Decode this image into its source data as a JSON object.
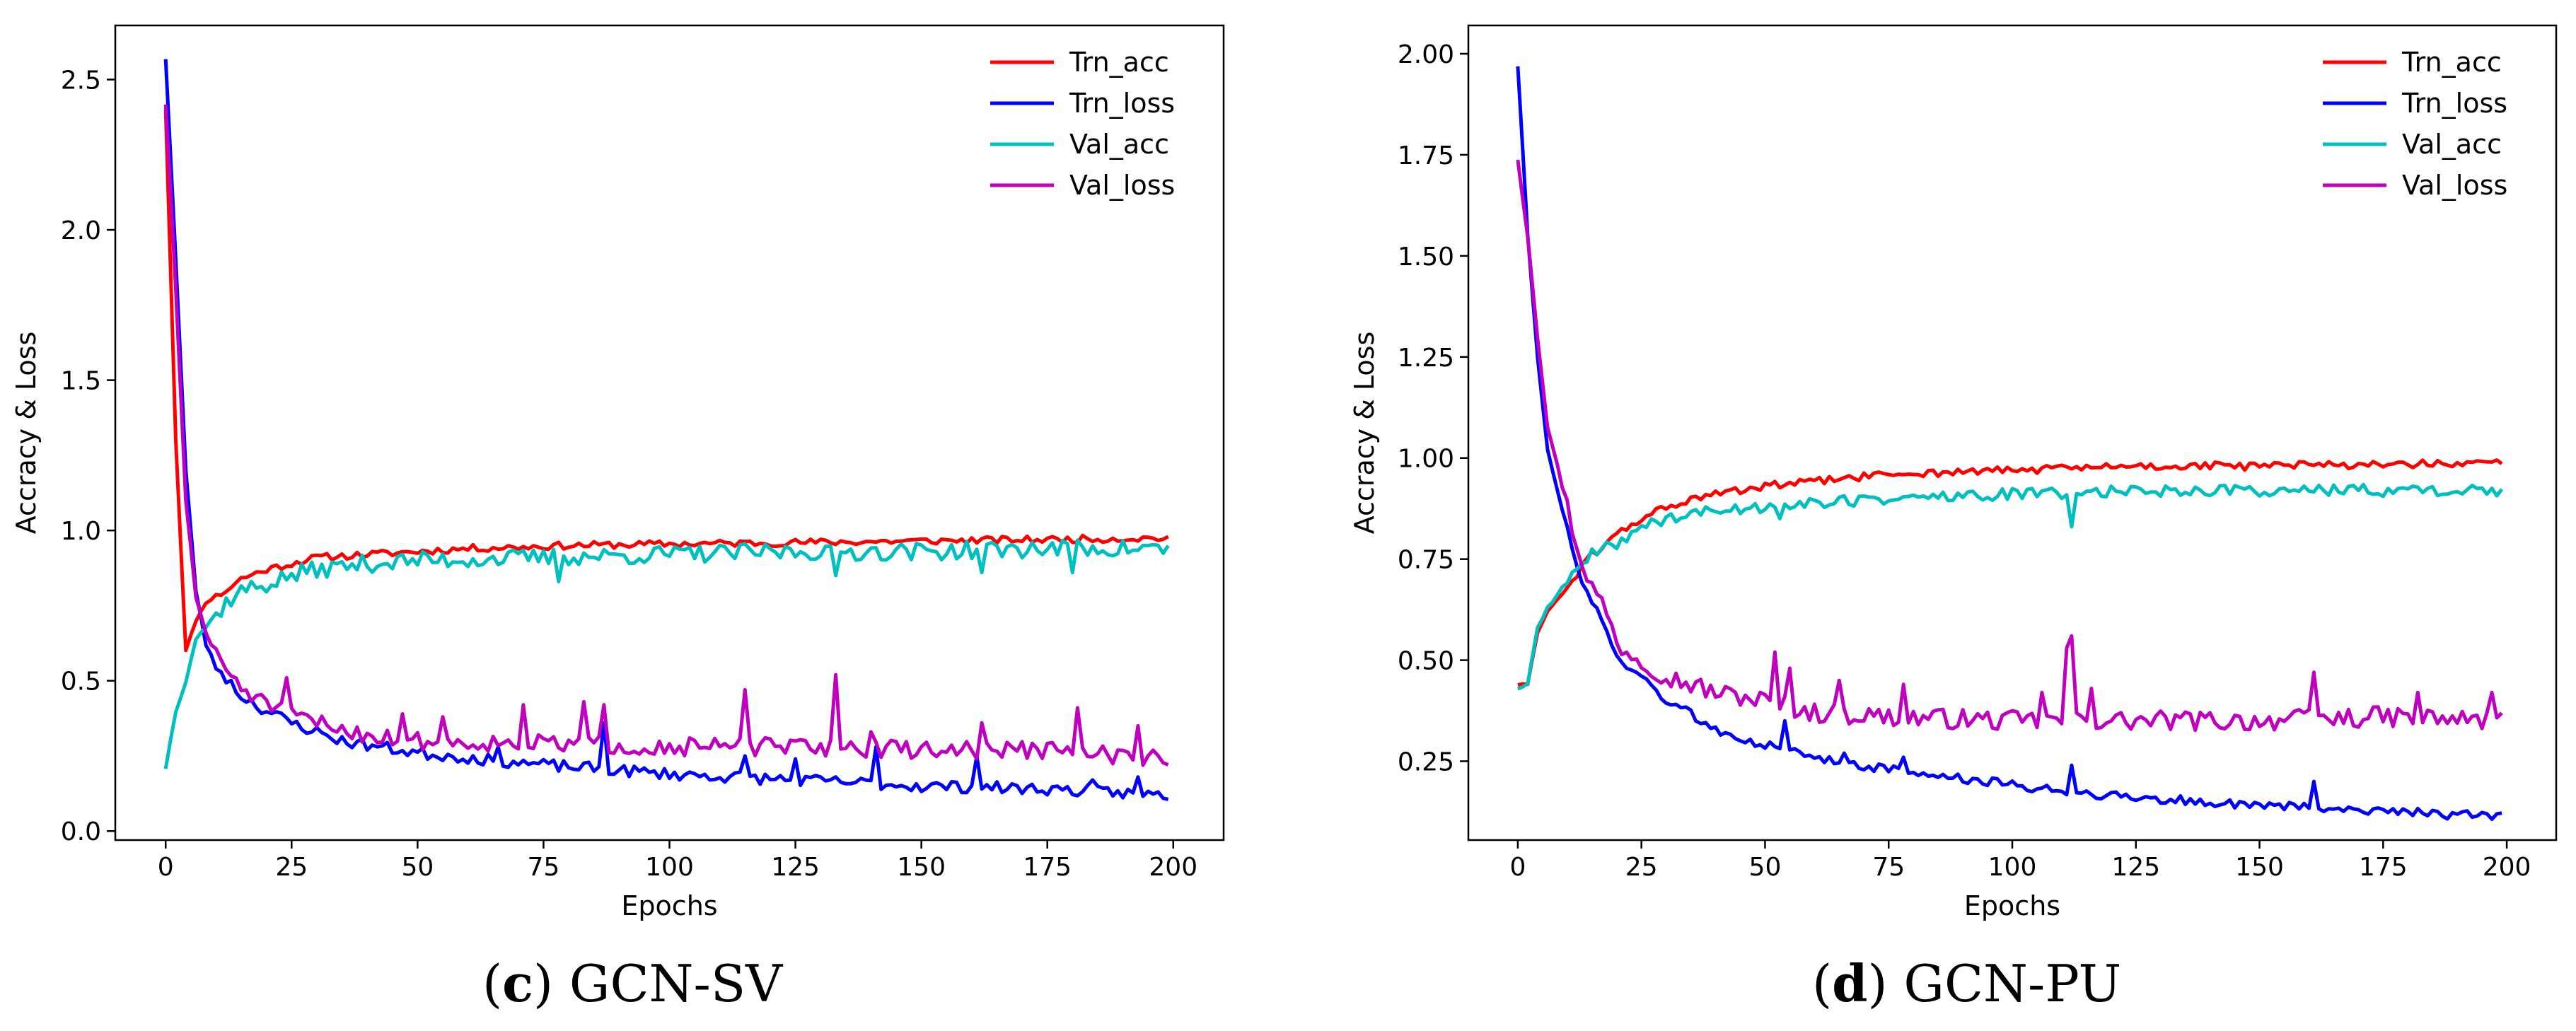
{
  "chart_data": [
    {
      "type": "line",
      "id": "c",
      "caption_letter": "c",
      "caption_text": "GCN-SV",
      "xlabel": "Epochs",
      "ylabel": "Accracy & Loss",
      "xlim": [
        -10,
        210
      ],
      "ylim": [
        -0.03,
        2.68
      ],
      "xticks": [
        0,
        25,
        50,
        75,
        100,
        125,
        150,
        175,
        200
      ],
      "yticks": [
        0.0,
        0.5,
        1.0,
        1.5,
        2.0,
        2.5
      ],
      "ytick_decimals": 1,
      "legend_position": "top-right",
      "series": [
        {
          "name": "Trn_acc",
          "color": "#ff0000",
          "anchors": [
            [
              0,
              2.4
            ],
            [
              2,
              1.3
            ],
            [
              4,
              0.6
            ],
            [
              6,
              0.7
            ],
            [
              8,
              0.76
            ],
            [
              12,
              0.8
            ],
            [
              15,
              0.84
            ],
            [
              20,
              0.87
            ],
            [
              25,
              0.89
            ],
            [
              30,
              0.91
            ],
            [
              40,
              0.92
            ],
            [
              50,
              0.93
            ],
            [
              60,
              0.94
            ],
            [
              80,
              0.95
            ],
            [
              100,
              0.955
            ],
            [
              125,
              0.96
            ],
            [
              150,
              0.965
            ],
            [
              175,
              0.97
            ],
            [
              199,
              0.975
            ]
          ],
          "noise": 0.012,
          "seed": 11
        },
        {
          "name": "Trn_loss",
          "color": "#0000ff",
          "anchors": [
            [
              0,
              2.57
            ],
            [
              2,
              1.9
            ],
            [
              4,
              1.2
            ],
            [
              6,
              0.8
            ],
            [
              8,
              0.62
            ],
            [
              10,
              0.55
            ],
            [
              15,
              0.45
            ],
            [
              20,
              0.4
            ],
            [
              25,
              0.36
            ],
            [
              35,
              0.3
            ],
            [
              50,
              0.26
            ],
            [
              75,
              0.22
            ],
            [
              100,
              0.19
            ],
            [
              125,
              0.17
            ],
            [
              150,
              0.15
            ],
            [
              175,
              0.14
            ],
            [
              199,
              0.12
            ]
          ],
          "noise": 0.02,
          "seed": 23,
          "spikes": [
            [
              66,
              0.28
            ],
            [
              87,
              0.36
            ],
            [
              115,
              0.25
            ],
            [
              125,
              0.24
            ],
            [
              141,
              0.28
            ],
            [
              161,
              0.25
            ],
            [
              184,
              0.17
            ],
            [
              193,
              0.18
            ]
          ]
        },
        {
          "name": "Val_acc",
          "color": "#00bfbf",
          "anchors": [
            [
              0,
              0.21
            ],
            [
              2,
              0.4
            ],
            [
              4,
              0.5
            ],
            [
              6,
              0.64
            ],
            [
              8,
              0.68
            ],
            [
              12,
              0.76
            ],
            [
              15,
              0.8
            ],
            [
              20,
              0.82
            ],
            [
              25,
              0.85
            ],
            [
              30,
              0.87
            ],
            [
              40,
              0.89
            ],
            [
              50,
              0.9
            ],
            [
              75,
              0.91
            ],
            [
              100,
              0.92
            ],
            [
              125,
              0.93
            ],
            [
              150,
              0.93
            ],
            [
              175,
              0.94
            ],
            [
              199,
              0.94
            ]
          ],
          "noise": 0.03,
          "seed": 37,
          "spikes": [
            [
              78,
              0.83
            ],
            [
              133,
              0.85
            ],
            [
              162,
              0.86
            ],
            [
              180,
              0.86
            ]
          ]
        },
        {
          "name": "Val_loss",
          "color": "#bf00bf",
          "anchors": [
            [
              0,
              2.42
            ],
            [
              2,
              1.8
            ],
            [
              4,
              1.1
            ],
            [
              6,
              0.78
            ],
            [
              8,
              0.66
            ],
            [
              10,
              0.58
            ],
            [
              15,
              0.48
            ],
            [
              20,
              0.42
            ],
            [
              25,
              0.39
            ],
            [
              30,
              0.36
            ],
            [
              40,
              0.32
            ],
            [
              50,
              0.3
            ],
            [
              75,
              0.29
            ],
            [
              100,
              0.28
            ],
            [
              125,
              0.28
            ],
            [
              150,
              0.27
            ],
            [
              175,
              0.27
            ],
            [
              199,
              0.24
            ]
          ],
          "noise": 0.03,
          "seed": 51,
          "spikes": [
            [
              24,
              0.51
            ],
            [
              47,
              0.39
            ],
            [
              55,
              0.38
            ],
            [
              71,
              0.42
            ],
            [
              83,
              0.43
            ],
            [
              87,
              0.42
            ],
            [
              115,
              0.47
            ],
            [
              133,
              0.52
            ],
            [
              140,
              0.33
            ],
            [
              162,
              0.36
            ],
            [
              181,
              0.41
            ],
            [
              193,
              0.35
            ]
          ]
        }
      ]
    },
    {
      "type": "line",
      "id": "d",
      "caption_letter": "d",
      "caption_text": "GCN-PU",
      "xlabel": "Epochs",
      "ylabel": "Accracy & Loss",
      "xlim": [
        -10,
        210
      ],
      "ylim": [
        0.055,
        2.07
      ],
      "xticks": [
        0,
        25,
        50,
        75,
        100,
        125,
        150,
        175,
        200
      ],
      "yticks": [
        0.25,
        0.5,
        0.75,
        1.0,
        1.25,
        1.5,
        1.75,
        2.0
      ],
      "ytick_decimals": 2,
      "legend_position": "top-right",
      "series": [
        {
          "name": "Trn_acc",
          "color": "#ff0000",
          "anchors": [
            [
              0,
              0.44
            ],
            [
              2,
              0.44
            ],
            [
              4,
              0.57
            ],
            [
              6,
              0.62
            ],
            [
              8,
              0.65
            ],
            [
              10,
              0.68
            ],
            [
              15,
              0.76
            ],
            [
              20,
              0.81
            ],
            [
              25,
              0.85
            ],
            [
              30,
              0.88
            ],
            [
              40,
              0.91
            ],
            [
              50,
              0.93
            ],
            [
              75,
              0.96
            ],
            [
              100,
              0.97
            ],
            [
              125,
              0.98
            ],
            [
              150,
              0.98
            ],
            [
              175,
              0.985
            ],
            [
              199,
              0.985
            ]
          ],
          "noise": 0.01,
          "seed": 61
        },
        {
          "name": "Trn_loss",
          "color": "#0000ff",
          "anchors": [
            [
              0,
              1.97
            ],
            [
              2,
              1.55
            ],
            [
              4,
              1.25
            ],
            [
              6,
              1.02
            ],
            [
              8,
              0.92
            ],
            [
              10,
              0.82
            ],
            [
              12,
              0.72
            ],
            [
              15,
              0.64
            ],
            [
              18,
              0.58
            ],
            [
              20,
              0.5
            ],
            [
              25,
              0.46
            ],
            [
              30,
              0.4
            ],
            [
              40,
              0.33
            ],
            [
              50,
              0.29
            ],
            [
              60,
              0.26
            ],
            [
              75,
              0.23
            ],
            [
              100,
              0.19
            ],
            [
              125,
              0.16
            ],
            [
              150,
              0.14
            ],
            [
              175,
              0.13
            ],
            [
              199,
              0.11
            ]
          ],
          "noise": 0.012,
          "seed": 73,
          "spikes": [
            [
              54,
              0.35
            ],
            [
              66,
              0.27
            ],
            [
              78,
              0.26
            ],
            [
              112,
              0.24
            ],
            [
              161,
              0.2
            ]
          ]
        },
        {
          "name": "Val_acc",
          "color": "#00bfbf",
          "anchors": [
            [
              0,
              0.43
            ],
            [
              2,
              0.44
            ],
            [
              4,
              0.58
            ],
            [
              6,
              0.63
            ],
            [
              8,
              0.66
            ],
            [
              10,
              0.7
            ],
            [
              15,
              0.76
            ],
            [
              20,
              0.79
            ],
            [
              25,
              0.83
            ],
            [
              30,
              0.85
            ],
            [
              40,
              0.87
            ],
            [
              50,
              0.88
            ],
            [
              75,
              0.9
            ],
            [
              100,
              0.91
            ],
            [
              125,
              0.92
            ],
            [
              150,
              0.92
            ],
            [
              175,
              0.92
            ],
            [
              199,
              0.92
            ]
          ],
          "noise": 0.015,
          "seed": 89,
          "spikes": [
            [
              112,
              0.83
            ],
            [
              53,
              0.85
            ]
          ]
        },
        {
          "name": "Val_loss",
          "color": "#bf00bf",
          "anchors": [
            [
              0,
              1.74
            ],
            [
              2,
              1.55
            ],
            [
              4,
              1.3
            ],
            [
              6,
              1.08
            ],
            [
              8,
              0.98
            ],
            [
              10,
              0.88
            ],
            [
              12,
              0.78
            ],
            [
              15,
              0.68
            ],
            [
              18,
              0.62
            ],
            [
              20,
              0.54
            ],
            [
              25,
              0.5
            ],
            [
              30,
              0.46
            ],
            [
              40,
              0.42
            ],
            [
              50,
              0.4
            ],
            [
              60,
              0.37
            ],
            [
              75,
              0.36
            ],
            [
              100,
              0.35
            ],
            [
              125,
              0.35
            ],
            [
              150,
              0.35
            ],
            [
              175,
              0.36
            ],
            [
              199,
              0.35
            ]
          ],
          "noise": 0.025,
          "seed": 97,
          "spikes": [
            [
              52,
              0.52
            ],
            [
              55,
              0.48
            ],
            [
              65,
              0.45
            ],
            [
              78,
              0.44
            ],
            [
              106,
              0.42
            ],
            [
              111,
              0.53
            ],
            [
              112,
              0.56
            ],
            [
              116,
              0.43
            ],
            [
              161,
              0.47
            ],
            [
              182,
              0.42
            ],
            [
              197,
              0.42
            ]
          ]
        }
      ]
    }
  ]
}
